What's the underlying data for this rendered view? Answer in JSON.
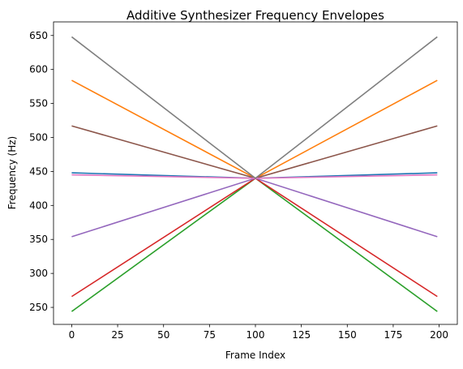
{
  "chart_data": {
    "type": "line",
    "title": "Additive Synthesizer Frequency Envelopes",
    "xlabel": "Frame Index",
    "ylabel": "Frequency (Hz)",
    "xlim": [
      -9.9,
      209.9
    ],
    "ylim": [
      225,
      670
    ],
    "xticks": [
      0,
      25,
      50,
      75,
      100,
      125,
      150,
      175,
      200
    ],
    "yticks": [
      250,
      300,
      350,
      400,
      450,
      500,
      550,
      600,
      650
    ],
    "grid": false,
    "x": [
      0,
      100,
      199
    ],
    "series": [
      {
        "color": "#1f77b4",
        "values": [
          448,
          440,
          448
        ]
      },
      {
        "color": "#ff7f0e",
        "values": [
          584,
          440,
          584
        ]
      },
      {
        "color": "#2ca02c",
        "values": [
          244,
          440,
          244
        ]
      },
      {
        "color": "#d62728",
        "values": [
          266,
          440,
          266
        ]
      },
      {
        "color": "#9467bd",
        "values": [
          354,
          440,
          354
        ]
      },
      {
        "color": "#8c564b",
        "values": [
          517,
          440,
          517
        ]
      },
      {
        "color": "#e377c2",
        "values": [
          445,
          440,
          445
        ]
      },
      {
        "color": "#7f7f7f",
        "values": [
          648,
          440,
          648
        ]
      }
    ]
  }
}
